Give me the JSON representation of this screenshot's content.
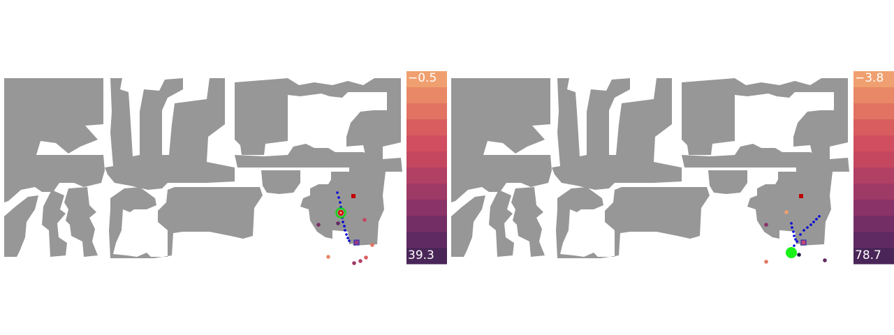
{
  "panels": [
    {
      "colorbar": {
        "top_label": "−0.5",
        "bottom_label": "39.3"
      },
      "colors": {
        "wall": "#979797",
        "free": "#ffffff",
        "path": "#0000d8",
        "agent_ring": "#19d219",
        "agent_core": "#d20000",
        "goal": "#c00000"
      }
    },
    {
      "colorbar": {
        "top_label": "−3.8",
        "bottom_label": "78.7"
      },
      "colors": {
        "wall": "#979797",
        "free": "#ffffff",
        "path": "#0000d8",
        "agent": "#19f219",
        "goal": "#c00000"
      }
    }
  ],
  "colormap": [
    "#f0a070",
    "#e88866",
    "#e27362",
    "#d95c5e",
    "#d04e5f",
    "#c4475f",
    "#b24064",
    "#9f3966",
    "#8a3368",
    "#742e66",
    "#5f2a62",
    "#4a2558"
  ]
}
